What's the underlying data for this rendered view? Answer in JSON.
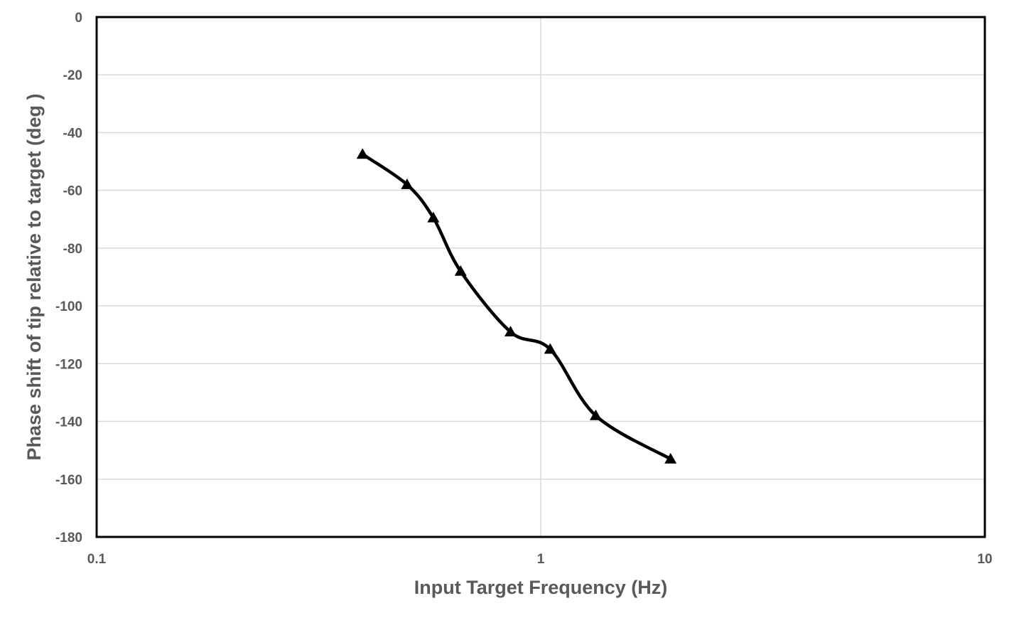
{
  "chart_data": {
    "type": "line",
    "title": "",
    "xlabel": "Input Target Frequency (Hz)",
    "ylabel": "Phase shift of tip  relative to target (deg )",
    "x_scale": "log",
    "xlim": [
      0.1,
      10
    ],
    "ylim": [
      -180,
      0
    ],
    "x_ticks": [
      0.1,
      1,
      10
    ],
    "x_tick_labels": [
      "0.1",
      "1",
      "10"
    ],
    "y_ticks": [
      0,
      -20,
      -40,
      -60,
      -80,
      -100,
      -120,
      -140,
      -160,
      -180
    ],
    "y_tick_labels": [
      "0",
      "-20",
      "-40",
      "-60",
      "-80",
      "-100",
      "-120",
      "-140",
      "-160",
      "-180"
    ],
    "grid": true,
    "legend": "none",
    "series": [
      {
        "marker": "triangle",
        "line_style": "smooth",
        "color": "#000000",
        "x": [
          0.397,
          0.5,
          0.573,
          0.66,
          0.855,
          1.05,
          1.33,
          1.96
        ],
        "y": [
          -47.5,
          -58,
          -69.5,
          -88,
          -109,
          -115,
          -138,
          -153
        ]
      }
    ]
  }
}
